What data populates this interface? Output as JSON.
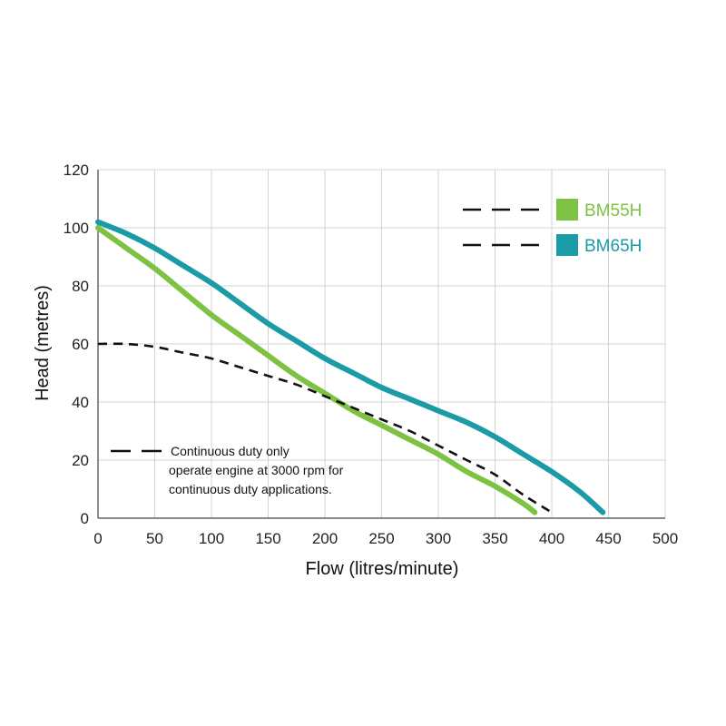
{
  "chart_data": {
    "type": "line",
    "xlabel": "Flow (litres/minute)",
    "ylabel": "Head (metres)",
    "xlim": [
      0,
      500
    ],
    "ylim": [
      0,
      120
    ],
    "x_ticks": [
      0,
      50,
      100,
      150,
      200,
      250,
      300,
      350,
      400,
      450,
      500
    ],
    "y_ticks": [
      0,
      20,
      40,
      60,
      80,
      100,
      120
    ],
    "grid": true,
    "legend_position": "top-right",
    "series": [
      {
        "name": "BM55H",
        "color": "#7dc242",
        "x": [
          0,
          25,
          50,
          75,
          100,
          125,
          150,
          175,
          200,
          225,
          250,
          275,
          300,
          325,
          350,
          375,
          385
        ],
        "y": [
          100,
          93,
          86,
          78,
          70,
          63,
          56,
          49,
          43,
          37,
          32,
          27,
          22,
          16,
          11,
          5,
          2
        ]
      },
      {
        "name": "BM65H",
        "color": "#1a9ba6",
        "x": [
          0,
          25,
          50,
          75,
          100,
          125,
          150,
          175,
          200,
          225,
          250,
          275,
          300,
          325,
          350,
          375,
          400,
          425,
          445
        ],
        "y": [
          102,
          98,
          93,
          87,
          81,
          74,
          67,
          61,
          55,
          50,
          45,
          41,
          37,
          33,
          28,
          22,
          16,
          9,
          2
        ]
      }
    ],
    "duty_curve": {
      "color": "#111111",
      "style": "dashed",
      "x": [
        0,
        25,
        50,
        75,
        100,
        125,
        150,
        175,
        200,
        225,
        250,
        275,
        300,
        325,
        350,
        375,
        400
      ],
      "y": [
        60,
        60,
        59,
        57,
        55,
        52,
        49,
        46,
        42,
        38,
        34,
        30,
        25,
        20,
        15,
        8,
        2
      ]
    },
    "annotation": {
      "lines": [
        "Continuous duty only",
        "operate engine at 3000 rpm for",
        "continuous duty applications."
      ]
    }
  }
}
